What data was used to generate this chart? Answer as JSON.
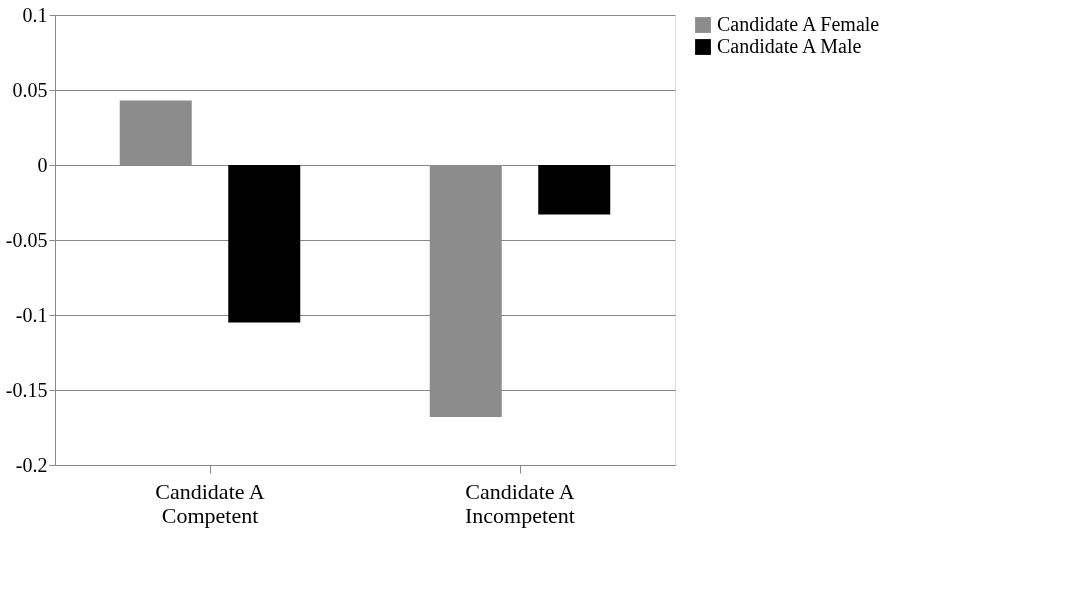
{
  "chart_data": {
    "type": "bar",
    "categories": [
      "Candidate A Competent",
      "Candidate A Incompetent"
    ],
    "series": [
      {
        "name": "Candidate A Female",
        "color": "#8c8c8c",
        "values": [
          0.043,
          -0.168
        ]
      },
      {
        "name": "Candidate A Male",
        "color": "#000000",
        "values": [
          -0.105,
          -0.033
        ]
      }
    ],
    "ylim": [
      -0.2,
      0.1
    ],
    "yticks": [
      -0.2,
      -0.15,
      -0.1,
      -0.05,
      0,
      0.05,
      0.1
    ],
    "grid": "y",
    "legend": "right"
  }
}
